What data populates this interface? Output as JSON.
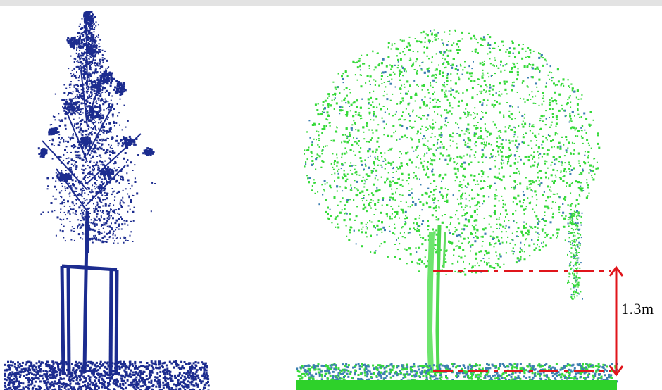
{
  "colors": {
    "background": "#ffffff",
    "top_strip": "#e3e3e3",
    "left_tree_points": "#1c2c8f",
    "right_tree_points": "#36d93a",
    "right_tree_secondary_points": "#3d7fb0",
    "ground_strip": "#2ed12a",
    "dimension_lines": "#e0151b"
  },
  "measurement": {
    "height_label": "1.3m"
  }
}
